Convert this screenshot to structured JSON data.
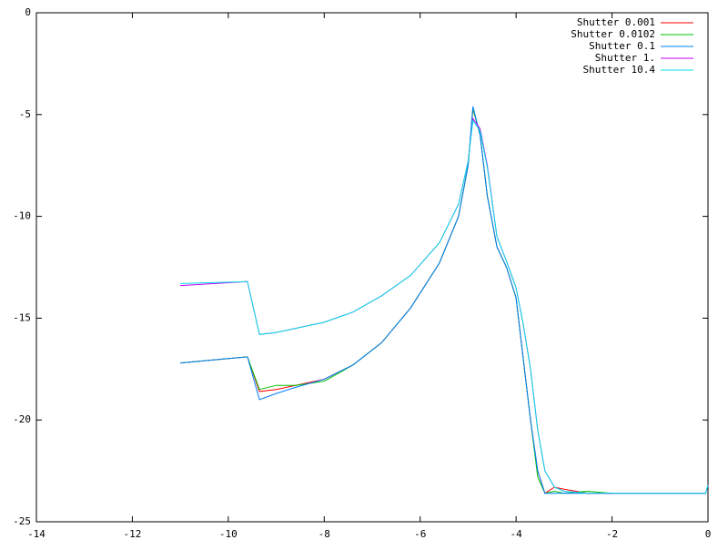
{
  "chart_data": {
    "type": "line",
    "x": [
      -11,
      -9.6,
      -9.35,
      -9,
      -8.6,
      -8,
      -7.4,
      -6.8,
      -6.2,
      -5.6,
      -5.2,
      -5,
      -4.9,
      -4.75,
      -4.6,
      -4.4,
      -4.2,
      -4,
      -3.85,
      -3.7,
      -3.55,
      -3.4,
      -3.2,
      -3,
      -2.5,
      -2,
      -1.5,
      -1,
      -0.5,
      -0.05,
      0
    ],
    "series": [
      {
        "name": "Shutter 0.001",
        "color": "#ff0000",
        "values": [
          -17.2,
          -16.9,
          -18.6,
          -18.5,
          -18.3,
          -18.0,
          -17.3,
          -16.2,
          -14.5,
          -12.3,
          -10.0,
          -7.5,
          -4.7,
          -6.0,
          -9.0,
          -11.5,
          -12.5,
          -14.0,
          -17.0,
          -20.0,
          -22.5,
          -23.6,
          -23.3,
          -23.4,
          -23.6,
          -23.6,
          null,
          null,
          null,
          null,
          null
        ]
      },
      {
        "name": "Shutter 0.0102",
        "color": "#00c000",
        "values": [
          -17.2,
          -16.9,
          -18.5,
          -18.3,
          -18.3,
          -18.1,
          -17.3,
          -16.2,
          -14.5,
          -12.3,
          -10.0,
          -7.5,
          -4.7,
          -6.0,
          -9.0,
          -11.5,
          -12.5,
          -14.0,
          -17.0,
          -20.0,
          -22.8,
          -23.6,
          -23.5,
          -23.6,
          -23.5,
          -23.6,
          null,
          null,
          null,
          null,
          null
        ]
      },
      {
        "name": "Shutter 0.1",
        "color": "#0080ff",
        "values": [
          -17.2,
          -16.9,
          -19.0,
          -18.7,
          -18.4,
          -18.0,
          -17.3,
          -16.2,
          -14.5,
          -12.3,
          -10.0,
          -7.5,
          -4.6,
          -6.0,
          -9.0,
          -11.5,
          -12.5,
          -14.0,
          -17.0,
          -20.0,
          -22.5,
          -23.6,
          -23.6,
          -23.6,
          -23.6,
          -23.6,
          -23.6,
          -23.6,
          -23.6,
          -23.6,
          -23.2
        ]
      },
      {
        "name": "Shutter 1.",
        "color": "#c000ff",
        "values": [
          -13.4,
          -13.2,
          -15.8,
          -15.7,
          -15.5,
          -15.2,
          -14.7,
          -13.9,
          -12.9,
          -11.3,
          -9.4,
          -7.3,
          -5.2,
          -5.7,
          -7.5,
          -11.0,
          -12.2,
          -13.5,
          -15.3,
          -17.5,
          -20.5,
          -22.5,
          -23.3,
          -23.5,
          -23.6,
          -23.6,
          -23.6,
          -23.6,
          -23.6,
          -23.6,
          -23.2
        ]
      },
      {
        "name": "Shutter 10.4",
        "color": "#00e0e0",
        "values": [
          -13.3,
          -13.2,
          -15.8,
          -15.7,
          -15.5,
          -15.2,
          -14.7,
          -13.9,
          -12.9,
          -11.3,
          -9.4,
          -7.3,
          -5.3,
          -5.8,
          -7.6,
          -11.0,
          -12.2,
          -13.5,
          -15.3,
          -17.5,
          -20.5,
          -22.5,
          -23.3,
          -23.5,
          -23.6,
          -23.6,
          -23.6,
          -23.6,
          -23.6,
          -23.6,
          -23.2
        ]
      }
    ],
    "xlim": [
      -14,
      0
    ],
    "ylim": [
      -25,
      0
    ],
    "xticks": [
      -14,
      -12,
      -10,
      -8,
      -6,
      -4,
      -2,
      0
    ],
    "yticks": [
      -25,
      -20,
      -15,
      -10,
      -5,
      0
    ],
    "legend": "top-right"
  }
}
